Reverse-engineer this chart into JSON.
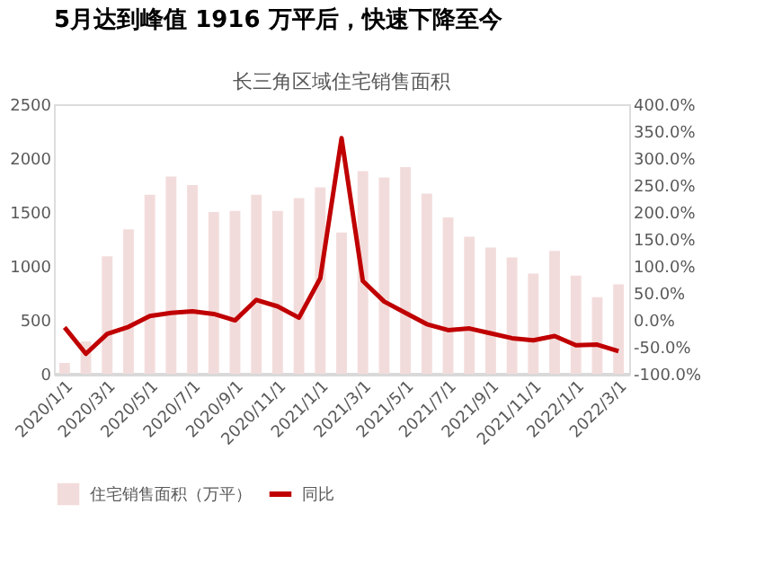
{
  "chart_data": {
    "type": "bar",
    "title": "5月达到峰值 1916 万平后，快速下降至今",
    "subtitle": "长三角区域住宅销售面积",
    "categories": [
      "2020/1/1",
      null,
      "2020/3/1",
      null,
      "2020/5/1",
      null,
      "2020/7/1",
      null,
      "2020/9/1",
      null,
      "2020/11/1",
      null,
      "2021/1/1",
      null,
      "2021/3/1",
      null,
      "2021/5/1",
      null,
      "2021/7/1",
      null,
      "2021/9/1",
      null,
      "2021/11/1",
      null,
      "2022/1/1",
      null,
      "2022/3/1"
    ],
    "series": [
      {
        "name": "住宅销售面积（万平）",
        "color": "#f2dcdb",
        "values": [
          100,
          300,
          1090,
          1340,
          1660,
          1830,
          1750,
          1500,
          1510,
          1660,
          1510,
          1630,
          1730,
          1310,
          1880,
          1820,
          1916,
          1670,
          1450,
          1270,
          1170,
          1080,
          930,
          1140,
          910,
          710,
          830
        ]
      },
      {
        "name": "同比",
        "type": "line",
        "axis": "y2",
        "color": "#c00000",
        "values": [
          -14,
          -63,
          -26,
          -13,
          7,
          13,
          16,
          11,
          -1,
          37,
          25,
          4,
          77,
          337,
          72,
          34,
          13,
          -8,
          -19,
          -16,
          -25,
          -34,
          -38,
          -30,
          -47,
          -46,
          -58
        ]
      }
    ],
    "ylim": [
      0,
      2500
    ],
    "yticks": [
      0,
      500,
      1000,
      1500,
      2000,
      2500
    ],
    "y2lim": [
      -100,
      400
    ],
    "y2ticks": [
      {
        "value": -100,
        "label": "-100.0%"
      },
      {
        "value": -50,
        "label": "-50.0%"
      },
      {
        "value": 0,
        "label": "0.0%"
      },
      {
        "value": 50,
        "label": "50.0%"
      },
      {
        "value": 100,
        "label": "100.0%"
      },
      {
        "value": 150,
        "label": "150.0%"
      },
      {
        "value": 200,
        "label": "200.0%"
      },
      {
        "value": 250,
        "label": "250.0%"
      },
      {
        "value": 300,
        "label": "300.0%"
      },
      {
        "value": 350,
        "label": "350.0%"
      },
      {
        "value": 400,
        "label": "400.0%"
      }
    ],
    "legend": "bottom",
    "grid": false
  }
}
